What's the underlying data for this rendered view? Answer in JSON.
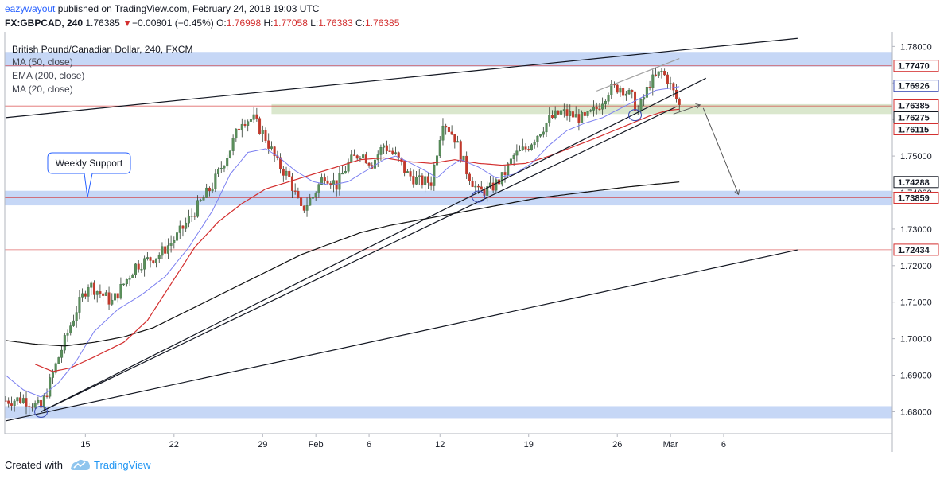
{
  "header": {
    "author": "eazywayout",
    "published": "published on TradingView.com, February 24, 2018 19:03 UTC",
    "symbol": "FX:GBPCAD, 240",
    "last": "1.76385",
    "change_arrow": "▼",
    "change": "−0.00801 (−0.45%)",
    "o_label": "O:",
    "o": "1.76998",
    "h_label": "H:",
    "h": "1.77058",
    "l_label": "L:",
    "l": "1.76383",
    "c_label": "C:",
    "c": "1.76385"
  },
  "footer": {
    "created": "Created with",
    "brand": "TradingView"
  },
  "chart_data": {
    "type": "candlestick",
    "title": "British Pound/Canadian Dollar, 240, FXCM",
    "legend": [
      "MA (50, close)",
      "EMA (200, close)",
      "MA (20, close)"
    ],
    "annotation": "Weekly Support",
    "ylim": [
      1.674,
      1.784
    ],
    "y_ticks": [
      1.68,
      1.69,
      1.7,
      1.71,
      1.72,
      1.73,
      1.74,
      1.75,
      1.76,
      1.77,
      1.78
    ],
    "y_tick_labels": [
      "1.68000",
      "1.69000",
      "1.70000",
      "1.71000",
      "1.72000",
      "1.73000",
      "1.74000",
      "1.75000",
      "1.76000",
      "1.77000",
      "1.78000"
    ],
    "x_ticks": [
      {
        "label": "15",
        "index": 27
      },
      {
        "label": "22",
        "index": 57
      },
      {
        "label": "29",
        "index": 87
      },
      {
        "label": "Feb",
        "index": 105
      },
      {
        "label": "6",
        "index": 123
      },
      {
        "label": "12",
        "index": 147
      },
      {
        "label": "19",
        "index": 177
      },
      {
        "label": "26",
        "index": 207
      },
      {
        "label": "Mar",
        "index": 225
      },
      {
        "label": "6",
        "index": 243
      }
    ],
    "price_labels": [
      {
        "text": "1.77470",
        "value": 1.7747,
        "bg": "#ffffff",
        "fg": "#131722",
        "border": "#d32f2f"
      },
      {
        "text": "1.76926",
        "value": 1.76926,
        "bg": "#ffffff",
        "fg": "#131722",
        "border": "#3f51b5"
      },
      {
        "text": "1.76385",
        "value": 1.76385,
        "bg": "#ffffff",
        "fg": "#131722",
        "border": "#d32f2f"
      },
      {
        "text": "1.76275",
        "value": 1.76275,
        "bg": "#ffffff",
        "fg": "#131722",
        "border": "#131722"
      },
      {
        "text": "1.76115",
        "value": 1.76115,
        "bg": "#ffffff",
        "fg": "#131722",
        "border": "#d32f2f"
      },
      {
        "text": "1.74288",
        "value": 1.74288,
        "bg": "#ffffff",
        "fg": "#131722",
        "border": "#131722"
      },
      {
        "text": "1.73859",
        "value": 1.73859,
        "bg": "#ffffff",
        "fg": "#131722",
        "border": "#d32f2f"
      },
      {
        "text": "1.72434",
        "value": 1.72434,
        "bg": "#ffffff",
        "fg": "#131722",
        "border": "#d32f2f"
      }
    ],
    "zones": [
      {
        "from": 1.7745,
        "to": 1.7785,
        "color": "#bcd0f5"
      },
      {
        "from": 1.7615,
        "to": 1.7642,
        "color": "#d4e3c4"
      },
      {
        "from": 1.7365,
        "to": 1.7405,
        "color": "#bcd0f5"
      },
      {
        "from": 1.7765,
        "to": 1.68,
        "color": "#bcd0f5"
      }
    ],
    "hlines": [
      {
        "value": 1.7747,
        "color": "#d32f2f"
      },
      {
        "value": 1.7637,
        "color": "#d32f2f"
      },
      {
        "value": 1.7386,
        "color": "#d32f2f"
      },
      {
        "value": 1.72434,
        "color": "#d32f2f"
      }
    ],
    "trendlines": [
      {
        "x1": 0,
        "y1": 1.7605,
        "x2": 268,
        "y2": 1.7822,
        "color": "#131722"
      },
      {
        "x1": 0,
        "y1": 1.6775,
        "x2": 268,
        "y2": 1.7243,
        "color": "#131722"
      },
      {
        "x1": 12,
        "y1": 1.68,
        "x2": 237,
        "y2": 1.7713,
        "color": "#131722"
      },
      {
        "x1": 12,
        "y1": 1.68,
        "x2": 227,
        "y2": 1.7635,
        "color": "#131722"
      },
      {
        "x1": 200,
        "y1": 1.7678,
        "x2": 228,
        "y2": 1.7767,
        "color": "#9e9e9e"
      }
    ],
    "projection": [
      {
        "index": 226,
        "value": 1.7615
      },
      {
        "index": 235,
        "value": 1.764
      },
      {
        "index": 248,
        "value": 1.7395
      }
    ],
    "circles": [
      {
        "index": 12,
        "value": 1.68
      },
      {
        "index": 160,
        "value": 1.7389
      },
      {
        "index": 213,
        "value": 1.7612
      }
    ],
    "series_anchors": {
      "close": [
        [
          0,
          1.683
        ],
        [
          6,
          1.6835
        ],
        [
          12,
          1.681
        ],
        [
          18,
          1.695
        ],
        [
          24,
          1.708
        ],
        [
          28,
          1.715
        ],
        [
          36,
          1.71
        ],
        [
          44,
          1.72
        ],
        [
          52,
          1.723
        ],
        [
          58,
          1.728
        ],
        [
          64,
          1.735
        ],
        [
          70,
          1.742
        ],
        [
          76,
          1.752
        ],
        [
          80,
          1.76
        ],
        [
          84,
          1.76
        ],
        [
          88,
          1.755
        ],
        [
          92,
          1.748
        ],
        [
          96,
          1.744
        ],
        [
          100,
          1.735
        ],
        [
          104,
          1.739
        ],
        [
          108,
          1.745
        ],
        [
          112,
          1.742
        ],
        [
          116,
          1.748
        ],
        [
          120,
          1.751
        ],
        [
          124,
          1.748
        ],
        [
          128,
          1.753
        ],
        [
          132,
          1.75
        ],
        [
          136,
          1.745
        ],
        [
          140,
          1.743
        ],
        [
          144,
          1.743
        ],
        [
          148,
          1.76
        ],
        [
          152,
          1.755
        ],
        [
          156,
          1.746
        ],
        [
          160,
          1.74
        ],
        [
          164,
          1.741
        ],
        [
          168,
          1.744
        ],
        [
          172,
          1.75
        ],
        [
          176,
          1.752
        ],
        [
          180,
          1.756
        ],
        [
          184,
          1.76
        ],
        [
          188,
          1.762
        ],
        [
          192,
          1.761
        ],
        [
          196,
          1.76
        ],
        [
          200,
          1.763
        ],
        [
          204,
          1.768
        ],
        [
          208,
          1.769
        ],
        [
          212,
          1.766
        ],
        [
          214,
          1.762
        ],
        [
          218,
          1.77
        ],
        [
          222,
          1.773
        ],
        [
          224,
          1.771
        ],
        [
          228,
          1.7638
        ]
      ],
      "ma20": [
        [
          0,
          1.69
        ],
        [
          6,
          1.686
        ],
        [
          12,
          1.684
        ],
        [
          18,
          1.688
        ],
        [
          24,
          1.694
        ],
        [
          30,
          1.702
        ],
        [
          38,
          1.708
        ],
        [
          46,
          1.712
        ],
        [
          54,
          1.717
        ],
        [
          62,
          1.725
        ],
        [
          70,
          1.735
        ],
        [
          76,
          1.745
        ],
        [
          82,
          1.751
        ],
        [
          88,
          1.752
        ],
        [
          92,
          1.75
        ],
        [
          98,
          1.746
        ],
        [
          104,
          1.743
        ],
        [
          110,
          1.742
        ],
        [
          116,
          1.743
        ],
        [
          122,
          1.746
        ],
        [
          128,
          1.749
        ],
        [
          132,
          1.75
        ],
        [
          136,
          1.7485
        ],
        [
          142,
          1.746
        ],
        [
          146,
          1.744
        ],
        [
          150,
          1.747
        ],
        [
          154,
          1.749
        ],
        [
          160,
          1.747
        ],
        [
          166,
          1.744
        ],
        [
          172,
          1.745
        ],
        [
          178,
          1.748
        ],
        [
          184,
          1.753
        ],
        [
          190,
          1.757
        ],
        [
          196,
          1.759
        ],
        [
          202,
          1.7605
        ],
        [
          208,
          1.763
        ],
        [
          214,
          1.7655
        ],
        [
          220,
          1.768
        ],
        [
          228,
          1.769
        ]
      ],
      "ma50": [
        [
          10,
          1.693
        ],
        [
          16,
          1.691
        ],
        [
          22,
          1.692
        ],
        [
          30,
          1.695
        ],
        [
          40,
          1.699
        ],
        [
          48,
          1.705
        ],
        [
          56,
          1.715
        ],
        [
          64,
          1.725
        ],
        [
          72,
          1.732
        ],
        [
          80,
          1.737
        ],
        [
          88,
          1.741
        ],
        [
          96,
          1.743
        ],
        [
          104,
          1.745
        ],
        [
          112,
          1.747
        ],
        [
          120,
          1.749
        ],
        [
          128,
          1.7495
        ],
        [
          136,
          1.7485
        ],
        [
          144,
          1.748
        ],
        [
          152,
          1.749
        ],
        [
          160,
          1.748
        ],
        [
          168,
          1.7475
        ],
        [
          176,
          1.748
        ],
        [
          184,
          1.75
        ],
        [
          192,
          1.7525
        ],
        [
          200,
          1.755
        ],
        [
          206,
          1.757
        ],
        [
          212,
          1.759
        ],
        [
          218,
          1.761
        ],
        [
          224,
          1.7625
        ],
        [
          228,
          1.7628
        ]
      ],
      "ema200": [
        [
          0,
          1.6995
        ],
        [
          10,
          1.6985
        ],
        [
          20,
          1.698
        ],
        [
          30,
          1.699
        ],
        [
          40,
          1.7005
        ],
        [
          50,
          1.703
        ],
        [
          60,
          1.707
        ],
        [
          70,
          1.711
        ],
        [
          80,
          1.715
        ],
        [
          90,
          1.719
        ],
        [
          100,
          1.723
        ],
        [
          110,
          1.726
        ],
        [
          120,
          1.729
        ],
        [
          130,
          1.731
        ],
        [
          140,
          1.7325
        ],
        [
          150,
          1.734
        ],
        [
          160,
          1.7355
        ],
        [
          170,
          1.737
        ],
        [
          180,
          1.7385
        ],
        [
          190,
          1.7395
        ],
        [
          200,
          1.7405
        ],
        [
          210,
          1.7415
        ],
        [
          220,
          1.7423
        ],
        [
          228,
          1.7429
        ]
      ]
    },
    "n_bars": 229
  }
}
